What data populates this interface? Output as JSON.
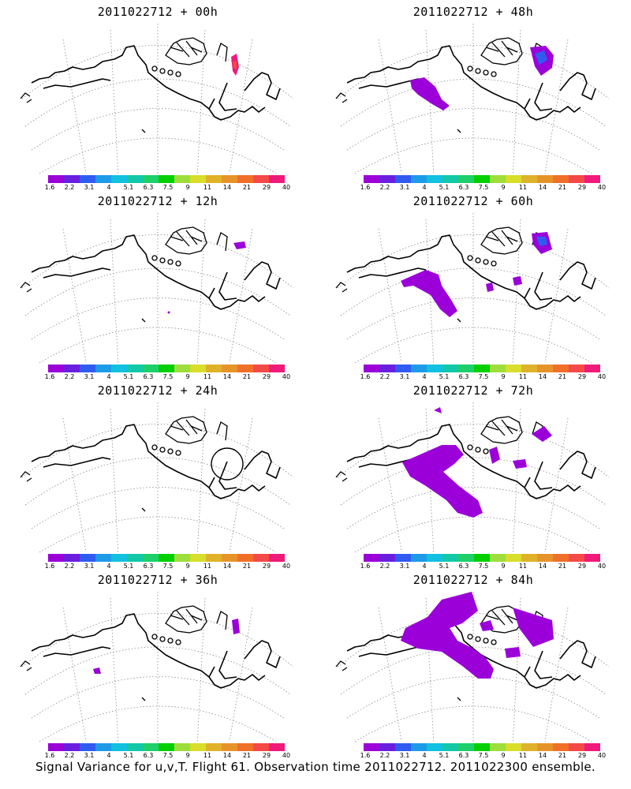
{
  "colorbar": {
    "colors": [
      "#9b00d9",
      "#6a1fe0",
      "#2f5bf0",
      "#1e9be8",
      "#12c0e0",
      "#12c8a8",
      "#1ecf6a",
      "#00d000",
      "#9ede3a",
      "#d8de2a",
      "#e0b22a",
      "#e6942a",
      "#f0702a",
      "#f34a48",
      "#ef1a7a"
    ],
    "labels": [
      "1.6",
      "2.2",
      "3.1",
      "4",
      "5.1",
      "6.3",
      "7.5",
      "9",
      "11",
      "14",
      "21",
      "29",
      "40"
    ]
  },
  "panels": [
    {
      "title": "2011022712 + 00h"
    },
    {
      "title": "2011022712 + 48h"
    },
    {
      "title": "2011022712 + 12h"
    },
    {
      "title": "2011022712 + 60h"
    },
    {
      "title": "2011022712 + 24h"
    },
    {
      "title": "2011022712 + 72h"
    },
    {
      "title": "2011022712 + 36h"
    },
    {
      "title": "2011022712 + 84h"
    }
  ],
  "footer": "Signal Variance for u,v,T. Flight 61. Observation time 2011022712. 2011022300 ensemble."
}
